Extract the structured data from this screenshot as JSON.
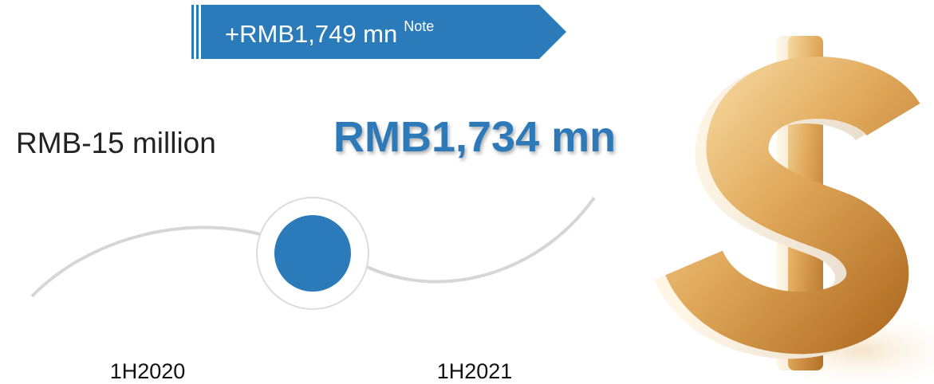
{
  "banner": {
    "text": "+RMB1,749 mn",
    "note": "Note"
  },
  "periods": [
    {
      "label": "1H2020",
      "value": "RMB-15 million"
    },
    {
      "label": "1H2021",
      "value": "RMB1,734 mn"
    }
  ]
}
